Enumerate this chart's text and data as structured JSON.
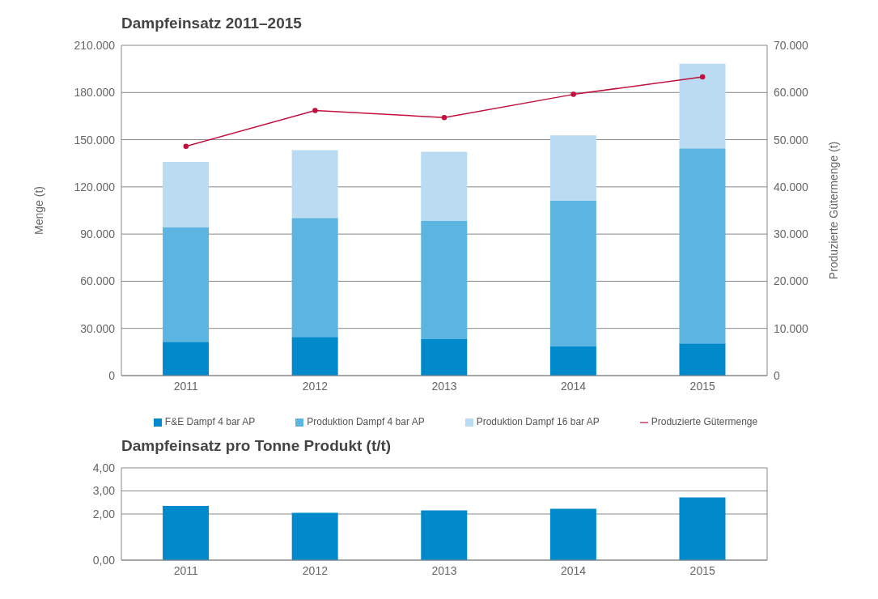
{
  "chart_data": [
    {
      "type": "bar",
      "title": "Dampfeinsatz 2011–2015",
      "ylabel": "Menge (t)",
      "y2label": "Produzierte Gütermenge (t)",
      "categories": [
        "2011",
        "2012",
        "2013",
        "2014",
        "2015"
      ],
      "stacked": true,
      "grid": "y",
      "legend": "bottom",
      "ylim": [
        0,
        210000
      ],
      "yticks": [
        {
          "value": 0,
          "label": "0"
        },
        {
          "value": 30000,
          "label": "30.000"
        },
        {
          "value": 60000,
          "label": "60.000"
        },
        {
          "value": 90000,
          "label": "90.000"
        },
        {
          "value": 120000,
          "label": "120.000"
        },
        {
          "value": 150000,
          "label": "150.000"
        },
        {
          "value": 180000,
          "label": "180.000"
        },
        {
          "value": 210000,
          "label": "210.000"
        }
      ],
      "y2lim": [
        0,
        70000
      ],
      "y2ticks": [
        {
          "value": 0,
          "label": "0"
        },
        {
          "value": 10000,
          "label": "10.000"
        },
        {
          "value": 20000,
          "label": "20.000"
        },
        {
          "value": 30000,
          "label": "30.000"
        },
        {
          "value": 40000,
          "label": "40.000"
        },
        {
          "value": 50000,
          "label": "50.000"
        },
        {
          "value": 60000,
          "label": "60.000"
        },
        {
          "value": 70000,
          "label": "70.000"
        }
      ],
      "series": [
        {
          "name": "F&E Dampf 4 bar AP",
          "type": "bar",
          "color": "#0089cb",
          "values": [
            21500,
            24600,
            23200,
            18800,
            20400
          ]
        },
        {
          "name": "Produktion Dampf 4 bar AP",
          "type": "bar",
          "color": "#5cb4e1",
          "values": [
            72700,
            75700,
            75400,
            92500,
            124100
          ]
        },
        {
          "name": "Produktion Dampf 16 bar AP",
          "type": "bar",
          "color": "#badbf2",
          "values": [
            41700,
            43100,
            43700,
            41500,
            53800
          ]
        },
        {
          "name": "Produzierte Gütermenge",
          "type": "line",
          "axis": "y2",
          "color": "#c0103d",
          "marker": "circle",
          "values": [
            48600,
            56200,
            54700,
            59600,
            63300
          ]
        }
      ]
    },
    {
      "type": "bar",
      "title": "Dampfeinsatz pro Tonne Produkt (t/t)",
      "categories": [
        "2011",
        "2012",
        "2013",
        "2014",
        "2015"
      ],
      "grid": "y",
      "color": "#0089cb",
      "ylim": [
        0,
        4
      ],
      "yticks": [
        {
          "value": 0,
          "label": "0,00"
        },
        {
          "value": 2,
          "label": "2,00"
        },
        {
          "value": 3,
          "label": "3,00"
        },
        {
          "value": 4,
          "label": "4,00"
        }
      ],
      "values": [
        2.35,
        2.05,
        2.16,
        2.23,
        2.72
      ]
    }
  ]
}
